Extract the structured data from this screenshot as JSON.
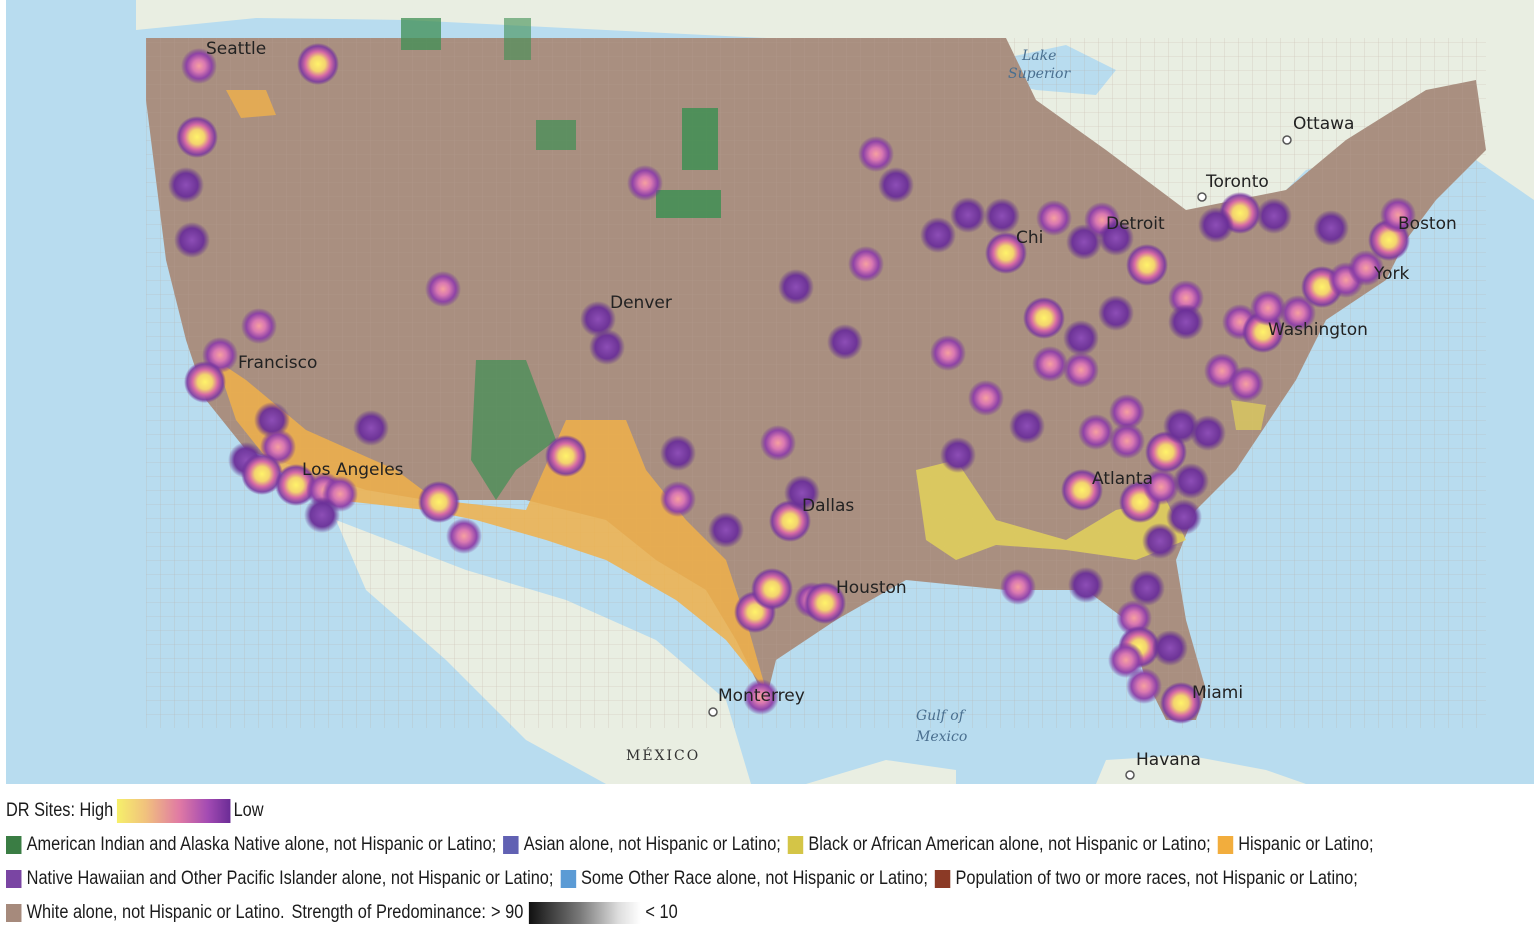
{
  "map": {
    "cities": [
      {
        "name": "Seattle"
      },
      {
        "name": "Ottawa"
      },
      {
        "name": "Toronto"
      },
      {
        "name": "Detroit"
      },
      {
        "name": "Chi"
      },
      {
        "name": "Boston"
      },
      {
        "name": "York"
      },
      {
        "name": "Washington"
      },
      {
        "name": "Denver"
      },
      {
        "name": "Francisco"
      },
      {
        "name": "Los Angeles"
      },
      {
        "name": "Dallas"
      },
      {
        "name": "Houston"
      },
      {
        "name": "Atlanta"
      },
      {
        "name": "Miami"
      },
      {
        "name": "Monterrey"
      },
      {
        "name": "Havana"
      }
    ],
    "water": [
      {
        "name": "Lake Superior"
      },
      {
        "name": "Gulf of Mexico"
      }
    ],
    "country": "MÉXICO",
    "colors": {
      "water": "#b8dcef",
      "land": "#e8ecdf",
      "white_pred": "#a98f80",
      "hispanic": "#f0b04a",
      "black": "#e3d25a",
      "native": "#3f8f54"
    }
  },
  "legend": {
    "dr_title": "DR Sites: High",
    "dr_low": "Low",
    "categories": [
      {
        "label": "American Indian and Alaska Native alone, not Hispanic or Latino;",
        "color": "#3a7d44"
      },
      {
        "label": "Asian alone, not Hispanic or Latino;",
        "color": "#6161b3"
      },
      {
        "label": "Black or African American alone, not Hispanic or Latino;",
        "color": "#d4c547"
      },
      {
        "label": "Hispanic or Latino;",
        "color": "#f2ad3d"
      },
      {
        "label": "Native Hawaiian and Other Pacific Islander alone, not Hispanic or Latino;",
        "color": "#7a45a3"
      },
      {
        "label": "Some Other Race alone, not Hispanic or Latino;",
        "color": "#5b9bd5"
      },
      {
        "label": "Population of two or more races, not Hispanic or Latino;",
        "color": "#8b3a26"
      },
      {
        "label": "White alone, not Hispanic or Latino.",
        "color": "#a68a7c"
      }
    ],
    "strength_label": "Strength of Predominance:",
    "strength_high": "> 90",
    "strength_low": "< 10"
  }
}
